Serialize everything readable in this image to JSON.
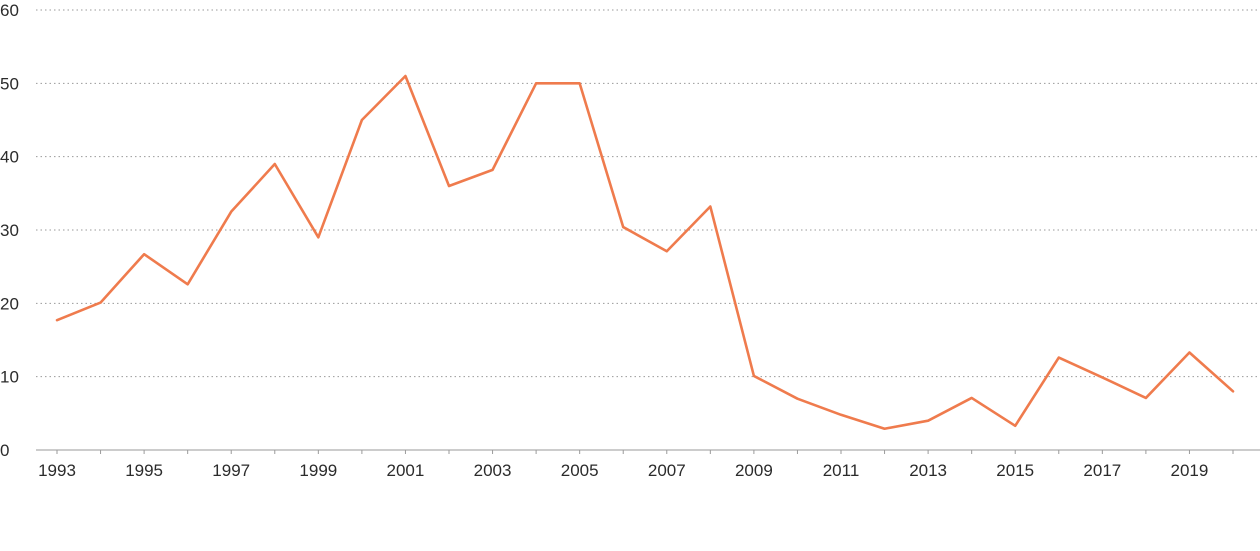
{
  "chart_data": {
    "type": "line",
    "title": "",
    "xlabel": "",
    "ylabel": "",
    "x": [
      1993,
      1994,
      1995,
      1996,
      1997,
      1998,
      1999,
      2000,
      2001,
      2002,
      2003,
      2004,
      2005,
      2006,
      2007,
      2008,
      2009,
      2010,
      2011,
      2012,
      2013,
      2014,
      2015,
      2016,
      2017,
      2018,
      2019,
      2020
    ],
    "series": [
      {
        "name": "",
        "color": "#ef7b4d",
        "values": [
          17.7,
          20.1,
          26.7,
          22.6,
          32.5,
          39,
          29,
          45,
          51,
          36,
          38.2,
          50,
          50,
          30.4,
          27.1,
          33.2,
          10.1,
          7,
          4.8,
          2.9,
          4,
          7.1,
          3.3,
          12.6,
          9.9,
          7.1,
          13.3,
          8
        ]
      }
    ],
    "x_tick_labels": [
      "1993",
      "1995",
      "1997",
      "1999",
      "2001",
      "2003",
      "2005",
      "2007",
      "2009",
      "2011",
      "2013",
      "2015",
      "2017",
      "2019"
    ],
    "y_tick_labels": [
      "0",
      "10",
      "20",
      "30",
      "40",
      "50",
      "60"
    ],
    "y_ticks": [
      0,
      10,
      20,
      30,
      40,
      50,
      60
    ],
    "ylim": [
      0,
      60
    ],
    "grid": true,
    "legend": "none"
  }
}
